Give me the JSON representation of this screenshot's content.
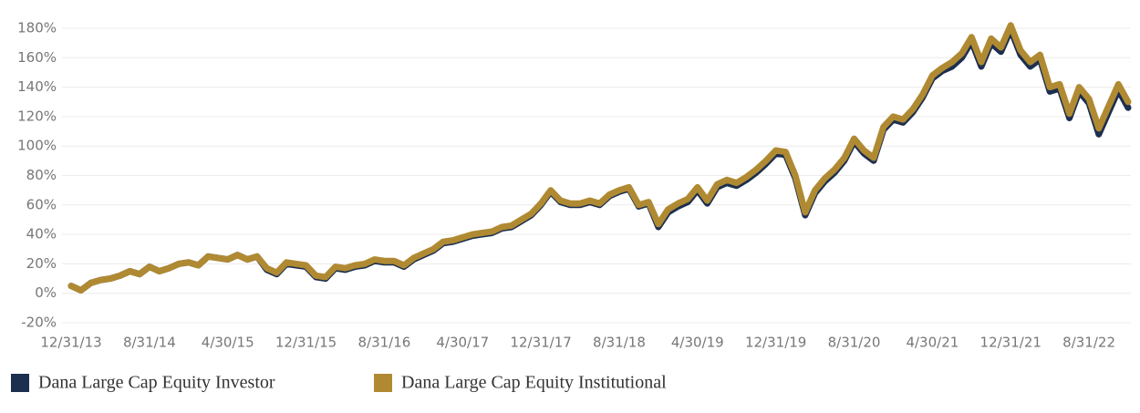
{
  "chart_data": {
    "type": "line",
    "categories": [
      "12/31/13",
      null,
      null,
      null,
      null,
      null,
      null,
      null,
      "8/31/14",
      null,
      null,
      null,
      null,
      null,
      null,
      null,
      "4/30/15",
      null,
      null,
      null,
      null,
      null,
      null,
      null,
      "12/31/15",
      null,
      null,
      null,
      null,
      null,
      null,
      null,
      "8/31/16",
      null,
      null,
      null,
      null,
      null,
      null,
      null,
      "4/30/17",
      null,
      null,
      null,
      null,
      null,
      null,
      null,
      "12/31/17",
      null,
      null,
      null,
      null,
      null,
      null,
      null,
      "8/31/18",
      null,
      null,
      null,
      null,
      null,
      null,
      null,
      "4/30/19",
      null,
      null,
      null,
      null,
      null,
      null,
      null,
      "12/31/19",
      null,
      null,
      null,
      null,
      null,
      null,
      null,
      "8/31/20",
      null,
      null,
      null,
      null,
      null,
      null,
      null,
      "4/30/21",
      null,
      null,
      null,
      null,
      null,
      null,
      null,
      "12/31/21",
      null,
      null,
      null,
      null,
      null,
      null,
      null,
      "8/31/22",
      null,
      null,
      null,
      null
    ],
    "series": [
      {
        "name": "Dana Large Cap Equity Investor",
        "color": "#1c2f4f",
        "values": [
          5,
          2,
          7,
          9,
          10,
          12,
          15,
          13,
          18,
          15,
          17,
          20,
          21,
          19,
          25,
          24,
          23,
          26,
          23,
          25,
          16,
          13,
          20,
          19,
          18,
          11,
          10,
          17,
          16,
          18,
          19,
          22,
          21,
          21,
          18,
          23,
          26,
          29,
          34,
          35,
          37,
          39,
          40,
          41,
          44,
          45,
          49,
          53,
          60,
          69,
          62,
          60,
          60,
          62,
          60,
          66,
          69,
          71,
          59,
          61,
          45,
          55,
          59,
          62,
          70,
          61,
          72,
          75,
          73,
          77,
          82,
          88,
          95,
          94,
          78,
          53,
          68,
          76,
          82,
          90,
          103,
          95,
          90,
          111,
          118,
          116,
          123,
          133,
          146,
          151,
          154,
          160,
          171,
          154,
          170,
          164,
          179,
          162,
          154,
          159,
          137,
          139,
          119,
          137,
          129,
          108,
          123,
          138,
          126
        ]
      },
      {
        "name": "Dana Large Cap Equity Institutional",
        "color": "#b08a32",
        "values": [
          5,
          2,
          7,
          9,
          10,
          12,
          15,
          13,
          18,
          15,
          17,
          20,
          21,
          19,
          25,
          24,
          23,
          26,
          23,
          25,
          17,
          14,
          21,
          20,
          19,
          12,
          11,
          18,
          17,
          19,
          20,
          23,
          22,
          22,
          19,
          24,
          27,
          30,
          35,
          36,
          38,
          40,
          41,
          42,
          45,
          46,
          50,
          54,
          61,
          70,
          63,
          61,
          61,
          63,
          61,
          67,
          70,
          72,
          60,
          62,
          47,
          57,
          61,
          64,
          72,
          63,
          74,
          77,
          75,
          79,
          84,
          90,
          97,
          96,
          80,
          55,
          70,
          78,
          84,
          92,
          105,
          97,
          92,
          113,
          120,
          118,
          125,
          135,
          148,
          153,
          157,
          163,
          174,
          157,
          173,
          167,
          182,
          165,
          157,
          162,
          140,
          142,
          122,
          140,
          132,
          112,
          127,
          142,
          130
        ]
      }
    ],
    "ylim": [
      -20,
      180
    ],
    "yticks": [
      {
        "value": -20,
        "label": "-20%"
      },
      {
        "value": 0,
        "label": "0%"
      },
      {
        "value": 20,
        "label": "20%"
      },
      {
        "value": 40,
        "label": "40%"
      },
      {
        "value": 60,
        "label": "60%"
      },
      {
        "value": 80,
        "label": "80%"
      },
      {
        "value": 100,
        "label": "100%"
      },
      {
        "value": 120,
        "label": "120%"
      },
      {
        "value": 140,
        "label": "140%"
      },
      {
        "value": 160,
        "label": "160%"
      },
      {
        "value": 180,
        "label": "180%"
      }
    ],
    "grid": true,
    "legend": "bottom"
  }
}
